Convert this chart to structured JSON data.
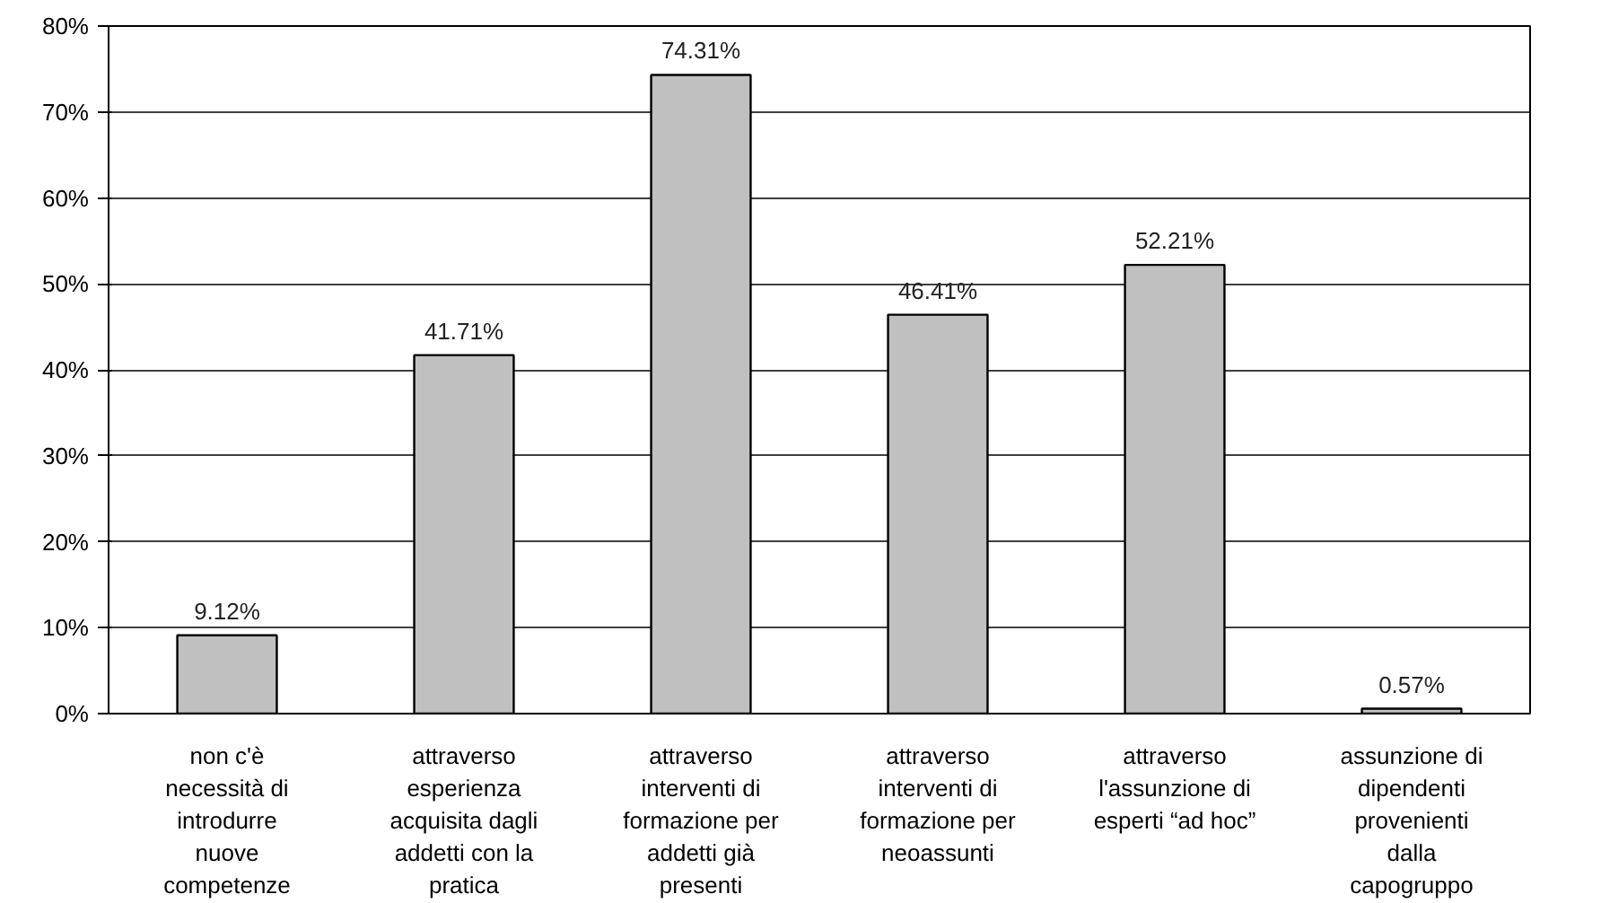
{
  "chart_data": {
    "type": "bar",
    "categories": [
      "non c'è\nnecessità di\nintrodurre\nnuove\ncompetenze",
      "attraverso\nesperienza\nacquisita dagli\naddetti con la\npratica",
      "attraverso\ninterventi di\nformazione per\naddetti già\npresenti",
      "attraverso\ninterventi di\nformazione per\nneoassunti",
      "attraverso\nl'assunzione di\nesperti “ad hoc”",
      "assunzione di\ndipendenti\nprovenienti\ndalla\ncapogruppo"
    ],
    "values": [
      9.12,
      41.71,
      74.31,
      46.41,
      52.21,
      0.57
    ],
    "value_labels": [
      "9.12%",
      "41.71%",
      "74.31%",
      "46.41%",
      "52.21%",
      "0.57%"
    ],
    "color": "#c0c0c0",
    "ylim": [
      0,
      80
    ],
    "yticks": [
      {
        "value": 0,
        "label": "0%"
      },
      {
        "value": 10,
        "label": "10%"
      },
      {
        "value": 20,
        "label": "20%"
      },
      {
        "value": 30,
        "label": "30%"
      },
      {
        "value": 40,
        "label": "40%"
      },
      {
        "value": 50,
        "label": "50%"
      },
      {
        "value": 60,
        "label": "60%"
      },
      {
        "value": 70,
        "label": "70%"
      },
      {
        "value": 80,
        "label": "80%"
      }
    ],
    "grid": "y"
  }
}
